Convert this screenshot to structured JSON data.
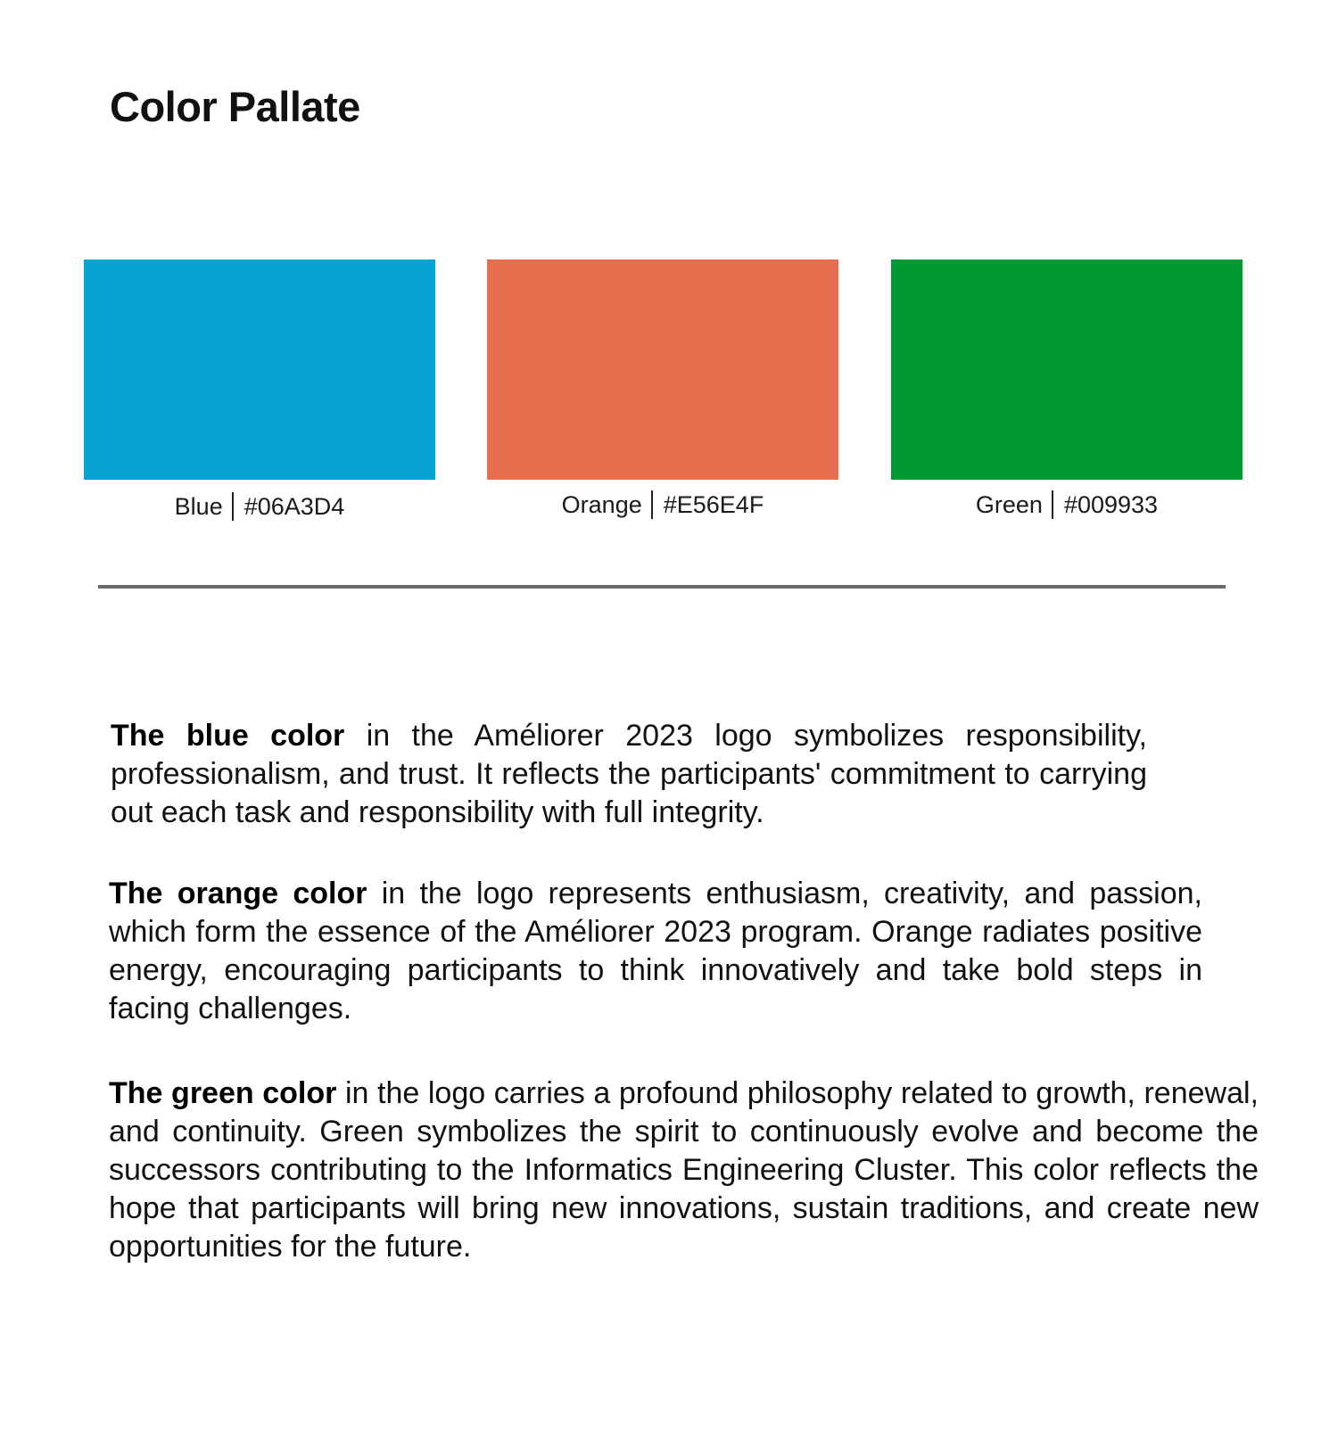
{
  "page": {
    "title": "Color Pallate"
  },
  "palette": [
    {
      "name": "Blue",
      "hex": "#06A3D4",
      "color": "#06A3D4"
    },
    {
      "name": "Orange",
      "hex": "#E56E4F",
      "color": "#E56E4F"
    },
    {
      "name": "Green",
      "hex": "#009933",
      "color": "#009933"
    }
  ],
  "descriptions": [
    {
      "lead": "The blue color",
      "text": " in the Améliorer 2023 logo symbolizes responsibility, professionalism, and trust. It reflects the participants' commitment to carrying out each task and responsibility with full integrity."
    },
    {
      "lead": "The orange color",
      "text": " in the logo represents enthusiasm, creativity, and passion, which form the essence of the Améliorer 2023 program. Orange radiates positive energy, encouraging participants to think innovatively and take bold steps in facing challenges."
    },
    {
      "lead": "The green color",
      "text": " in the logo carries a profound philosophy related to growth, renewal, and continuity. Green symbolizes the spirit to continuously evolve and become the successors contributing to the Informatics Engineering Cluster. This color reflects the hope that participants will bring new innovations, sustain traditions, and create new opportunities for the future."
    }
  ]
}
